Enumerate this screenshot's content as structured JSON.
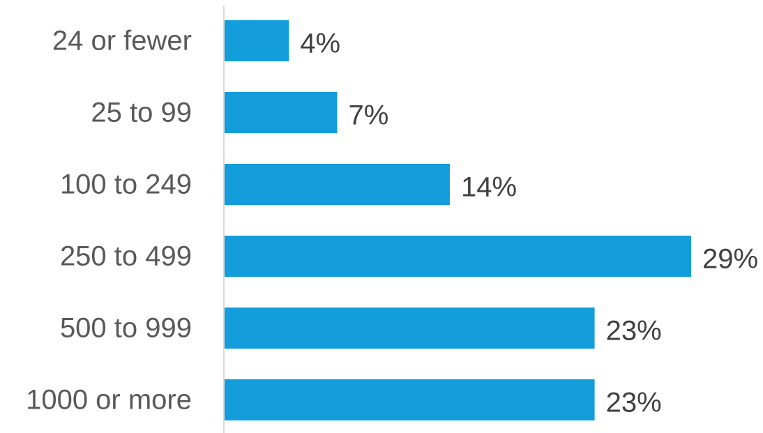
{
  "chart_data": {
    "type": "bar",
    "orientation": "horizontal",
    "categories": [
      "24 or fewer",
      "25 to 99",
      "100 to 249",
      "250 to 499",
      "500 to 999",
      "1000 or more"
    ],
    "values": [
      4,
      7,
      14,
      29,
      23,
      23
    ],
    "data_labels": [
      "4%",
      "7%",
      "14%",
      "29%",
      "23%",
      "23%"
    ],
    "value_unit": "%",
    "xlim": [
      0,
      29
    ],
    "grid": false,
    "legend": "none",
    "colors": {
      "bar": "#139ddb",
      "axis": "#d9d9d9",
      "category_text": "#595959",
      "label_text": "#404040"
    }
  }
}
